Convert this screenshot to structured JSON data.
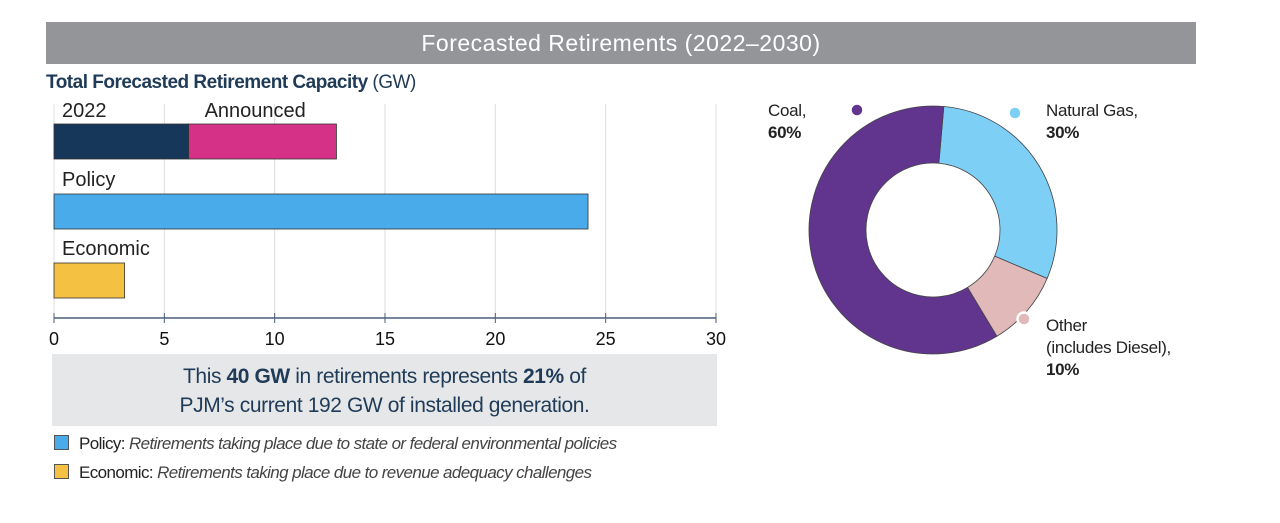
{
  "banner_title": "Forecasted Retirements (2022–2030)",
  "chart_data": [
    {
      "type": "bar",
      "orientation": "horizontal",
      "stacked": true,
      "title": "Total Forecasted Retirement Capacity",
      "unit": "(GW)",
      "xlim": [
        0,
        30
      ],
      "xticks": [
        0,
        5,
        10,
        15,
        20,
        25,
        30
      ],
      "grid": true,
      "bars": [
        {
          "segments": [
            {
              "label": "2022",
              "value": 6.1,
              "color": "#16365a"
            },
            {
              "label": "Announced",
              "value": 6.7,
              "color": "#d43187"
            }
          ]
        },
        {
          "segments": [
            {
              "label": "Policy",
              "value": 24.2,
              "color": "#4aabea"
            }
          ]
        },
        {
          "segments": [
            {
              "label": "Economic",
              "value": 3.2,
              "color": "#f5c142"
            }
          ]
        }
      ]
    },
    {
      "type": "pie",
      "donut": true,
      "slices": [
        {
          "label": "Natural Gas,",
          "pct_label": "30%",
          "value": 30,
          "color": "#7dcff6",
          "dot": "#7dcff6"
        },
        {
          "label": "Other",
          "label2": "(includes Diesel),",
          "pct_label": "10%",
          "value": 10,
          "color": "#e1b9b9",
          "dot": "#e1b9b9"
        },
        {
          "label": "Coal,",
          "pct_label": "60%",
          "value": 60,
          "color": "#61348e",
          "dot": "#61348e"
        }
      ]
    }
  ],
  "note": {
    "t1": "This ",
    "b1": "40 GW",
    "t2": " in retirements represents ",
    "b2": "21%",
    "t3": " of",
    "line2": "PJM’s current 192 GW of installed generation."
  },
  "legend": [
    {
      "name": "Policy:",
      "desc": "Retirements taking place due to state or federal environmental policies",
      "color": "#4aabea"
    },
    {
      "name": "Economic:",
      "desc": "Retirements taking place due to revenue adequacy challenges",
      "color": "#f5c142"
    }
  ]
}
